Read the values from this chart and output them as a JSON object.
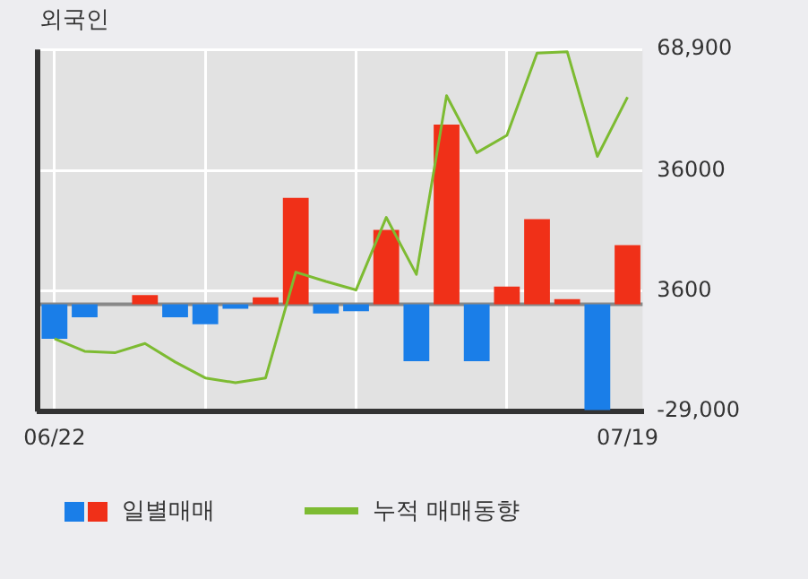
{
  "chart_data": {
    "type": "bar",
    "title": "외국인",
    "categories": [
      "06/22",
      null,
      null,
      null,
      null,
      null,
      null,
      null,
      null,
      null,
      null,
      null,
      null,
      null,
      null,
      null,
      null,
      null,
      null,
      "07/19"
    ],
    "series": [
      {
        "name": "일별매매",
        "colors": [
          "#1a7ee8",
          "#1a7ee8",
          "#f03018",
          "#f03018",
          "#1a7ee8",
          "#1a7ee8",
          "#1a7ee8",
          "#f03018",
          "#f03018",
          "#1a7ee8",
          "#1a7ee8",
          "#f03018",
          "#1a7ee8",
          "#f03018",
          "#1a7ee8",
          "#f03018",
          "#f03018",
          "#f03018",
          "#1a7ee8",
          "#f03018"
        ],
        "values": [
          -9300,
          -3500,
          0,
          2500,
          -3500,
          -5400,
          -1200,
          1900,
          28800,
          -2500,
          -1900,
          20100,
          -15400,
          48600,
          -15400,
          4800,
          23000,
          1400,
          -28600,
          16000
        ]
      },
      {
        "name": "누적 매매동향",
        "type": "line",
        "color": "#7dbb32",
        "values": [
          -9300,
          -12700,
          -13100,
          -10600,
          -15600,
          -19900,
          -21200,
          -19900,
          8700,
          6200,
          3900,
          23500,
          8100,
          56400,
          41000,
          45700,
          67900,
          68300,
          40000,
          56000
        ]
      }
    ],
    "ylim": [
      -29000,
      68900
    ],
    "yticks": [
      {
        "value": 68900,
        "label": "68,900"
      },
      36000,
      3600,
      {
        "value": -29000,
        "label": "-29,000"
      }
    ],
    "ref_lines": [
      {
        "axis": "y",
        "value": 0,
        "color": "#888888"
      }
    ],
    "grid": true,
    "legend": "bottom"
  }
}
